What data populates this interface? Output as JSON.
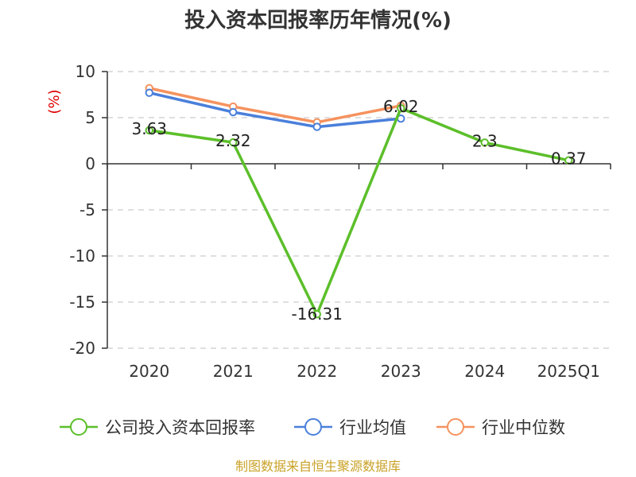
{
  "chart_data": {
    "type": "line",
    "title": "投入资本回报率历年情况(%)",
    "ylabel": "(%)",
    "xlabel": "",
    "categories": [
      "2020",
      "2021",
      "2022",
      "2023",
      "2024",
      "2025Q1"
    ],
    "ylim": [
      -20,
      10
    ],
    "yticks": [
      10,
      5,
      0,
      -5,
      -10,
      -15,
      -20
    ],
    "grid": true,
    "legend_position": "bottom",
    "series": [
      {
        "name": "公司投入资本回报率",
        "color": "#5cbf2a",
        "values": [
          3.63,
          2.32,
          -16.31,
          6.02,
          2.3,
          0.37
        ],
        "labels": [
          "3.63",
          "2.32",
          "-16.31",
          "6.02",
          "2.3",
          "0.37"
        ]
      },
      {
        "name": "行业均值",
        "color": "#4a7fdb",
        "values": [
          7.7,
          5.6,
          4.0,
          4.9,
          null,
          null
        ]
      },
      {
        "name": "行业中位数",
        "color": "#f5925e",
        "values": [
          8.2,
          6.2,
          4.5,
          6.3,
          null,
          null
        ]
      }
    ],
    "source": "制图数据来自恒生聚源数据库"
  }
}
